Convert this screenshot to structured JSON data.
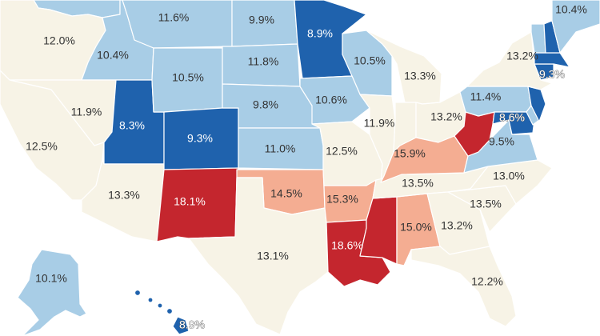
{
  "colors": {
    "tan": "#f7f3e6",
    "light_blue": "#a8cde6",
    "dark_blue": "#1f62ad",
    "light_red": "#f4ad92",
    "dark_red": "#c4262e"
  },
  "states": [
    {
      "id": "montana",
      "category": "light_blue",
      "label": "11.6%"
    },
    {
      "id": "north-dakota",
      "category": "light_blue",
      "label": "9.9%"
    },
    {
      "id": "minnesota",
      "category": "dark_blue",
      "label": "8.9%"
    },
    {
      "id": "washington",
      "category": "light_blue",
      "label": ""
    },
    {
      "id": "oregon",
      "category": "tan",
      "label": "12.0%"
    },
    {
      "id": "idaho",
      "category": "light_blue",
      "label": "10.4%"
    },
    {
      "id": "wyoming",
      "category": "light_blue",
      "label": "10.5%"
    },
    {
      "id": "south-dakota",
      "category": "light_blue",
      "label": "11.8%"
    },
    {
      "id": "wisconsin",
      "category": "light_blue",
      "label": "10.5%"
    },
    {
      "id": "michigan",
      "category": "tan",
      "label": "13.3%"
    },
    {
      "id": "nevada",
      "category": "tan",
      "label": "11.9%"
    },
    {
      "id": "california",
      "category": "tan",
      "label": "12.5%"
    },
    {
      "id": "utah",
      "category": "dark_blue",
      "label": "8.3%"
    },
    {
      "id": "colorado",
      "category": "dark_blue",
      "label": "9.3%"
    },
    {
      "id": "nebraska",
      "category": "light_blue",
      "label": "9.8%"
    },
    {
      "id": "iowa",
      "category": "light_blue",
      "label": "10.6%"
    },
    {
      "id": "illinois",
      "category": "tan",
      "label": "11.9%"
    },
    {
      "id": "kansas",
      "category": "light_blue",
      "label": "11.0%"
    },
    {
      "id": "missouri",
      "category": "tan",
      "label": "12.5%"
    },
    {
      "id": "indiana",
      "category": "tan",
      "label": ""
    },
    {
      "id": "ohio",
      "category": "tan",
      "label": "13.2%"
    },
    {
      "id": "arizona",
      "category": "tan",
      "label": "13.3%"
    },
    {
      "id": "new-mexico",
      "category": "dark_red",
      "label": "18.1%"
    },
    {
      "id": "oklahoma",
      "category": "light_red",
      "label": "14.5%"
    },
    {
      "id": "texas",
      "category": "tan",
      "label": "13.1%"
    },
    {
      "id": "arkansas",
      "category": "light_red",
      "label": "15.3%"
    },
    {
      "id": "louisiana",
      "category": "dark_red",
      "label": "18.6%"
    },
    {
      "id": "mississippi",
      "category": "dark_red",
      "label": ""
    },
    {
      "id": "alabama",
      "category": "light_red",
      "label": "15.0%"
    },
    {
      "id": "georgia",
      "category": "tan",
      "label": "13.2%"
    },
    {
      "id": "florida",
      "category": "tan",
      "label": "12.2%"
    },
    {
      "id": "tennessee",
      "category": "tan",
      "label": "13.5%"
    },
    {
      "id": "kentucky",
      "category": "light_red",
      "label": "15.9%"
    },
    {
      "id": "west-virginia",
      "category": "dark_red",
      "label": ""
    },
    {
      "id": "virginia",
      "category": "light_blue",
      "label": "9.5%"
    },
    {
      "id": "north-carolina",
      "category": "tan",
      "label": "13.0%"
    },
    {
      "id": "south-carolina",
      "category": "tan",
      "label": "13.5%"
    },
    {
      "id": "pennsylvania",
      "category": "light_blue",
      "label": "11.4%"
    },
    {
      "id": "new-york",
      "category": "tan",
      "label": "13.2%"
    },
    {
      "id": "maryland",
      "category": "dark_blue",
      "label": "8.6%"
    },
    {
      "id": "delaware",
      "category": "light_blue",
      "label": ""
    },
    {
      "id": "new-jersey",
      "category": "dark_blue",
      "label": ""
    },
    {
      "id": "vermont",
      "category": "light_blue",
      "label": ""
    },
    {
      "id": "new-hampshire",
      "category": "dark_blue",
      "label": ""
    },
    {
      "id": "massachusetts",
      "category": "dark_blue",
      "label": "9.3%"
    },
    {
      "id": "connecticut",
      "category": "dark_blue",
      "label": ""
    },
    {
      "id": "maine",
      "category": "light_blue",
      "label": "10.4%"
    },
    {
      "id": "alaska",
      "category": "light_blue",
      "label": "10.1%"
    },
    {
      "id": "hawaii",
      "category": "dark_blue",
      "label": "8.9%"
    }
  ]
}
